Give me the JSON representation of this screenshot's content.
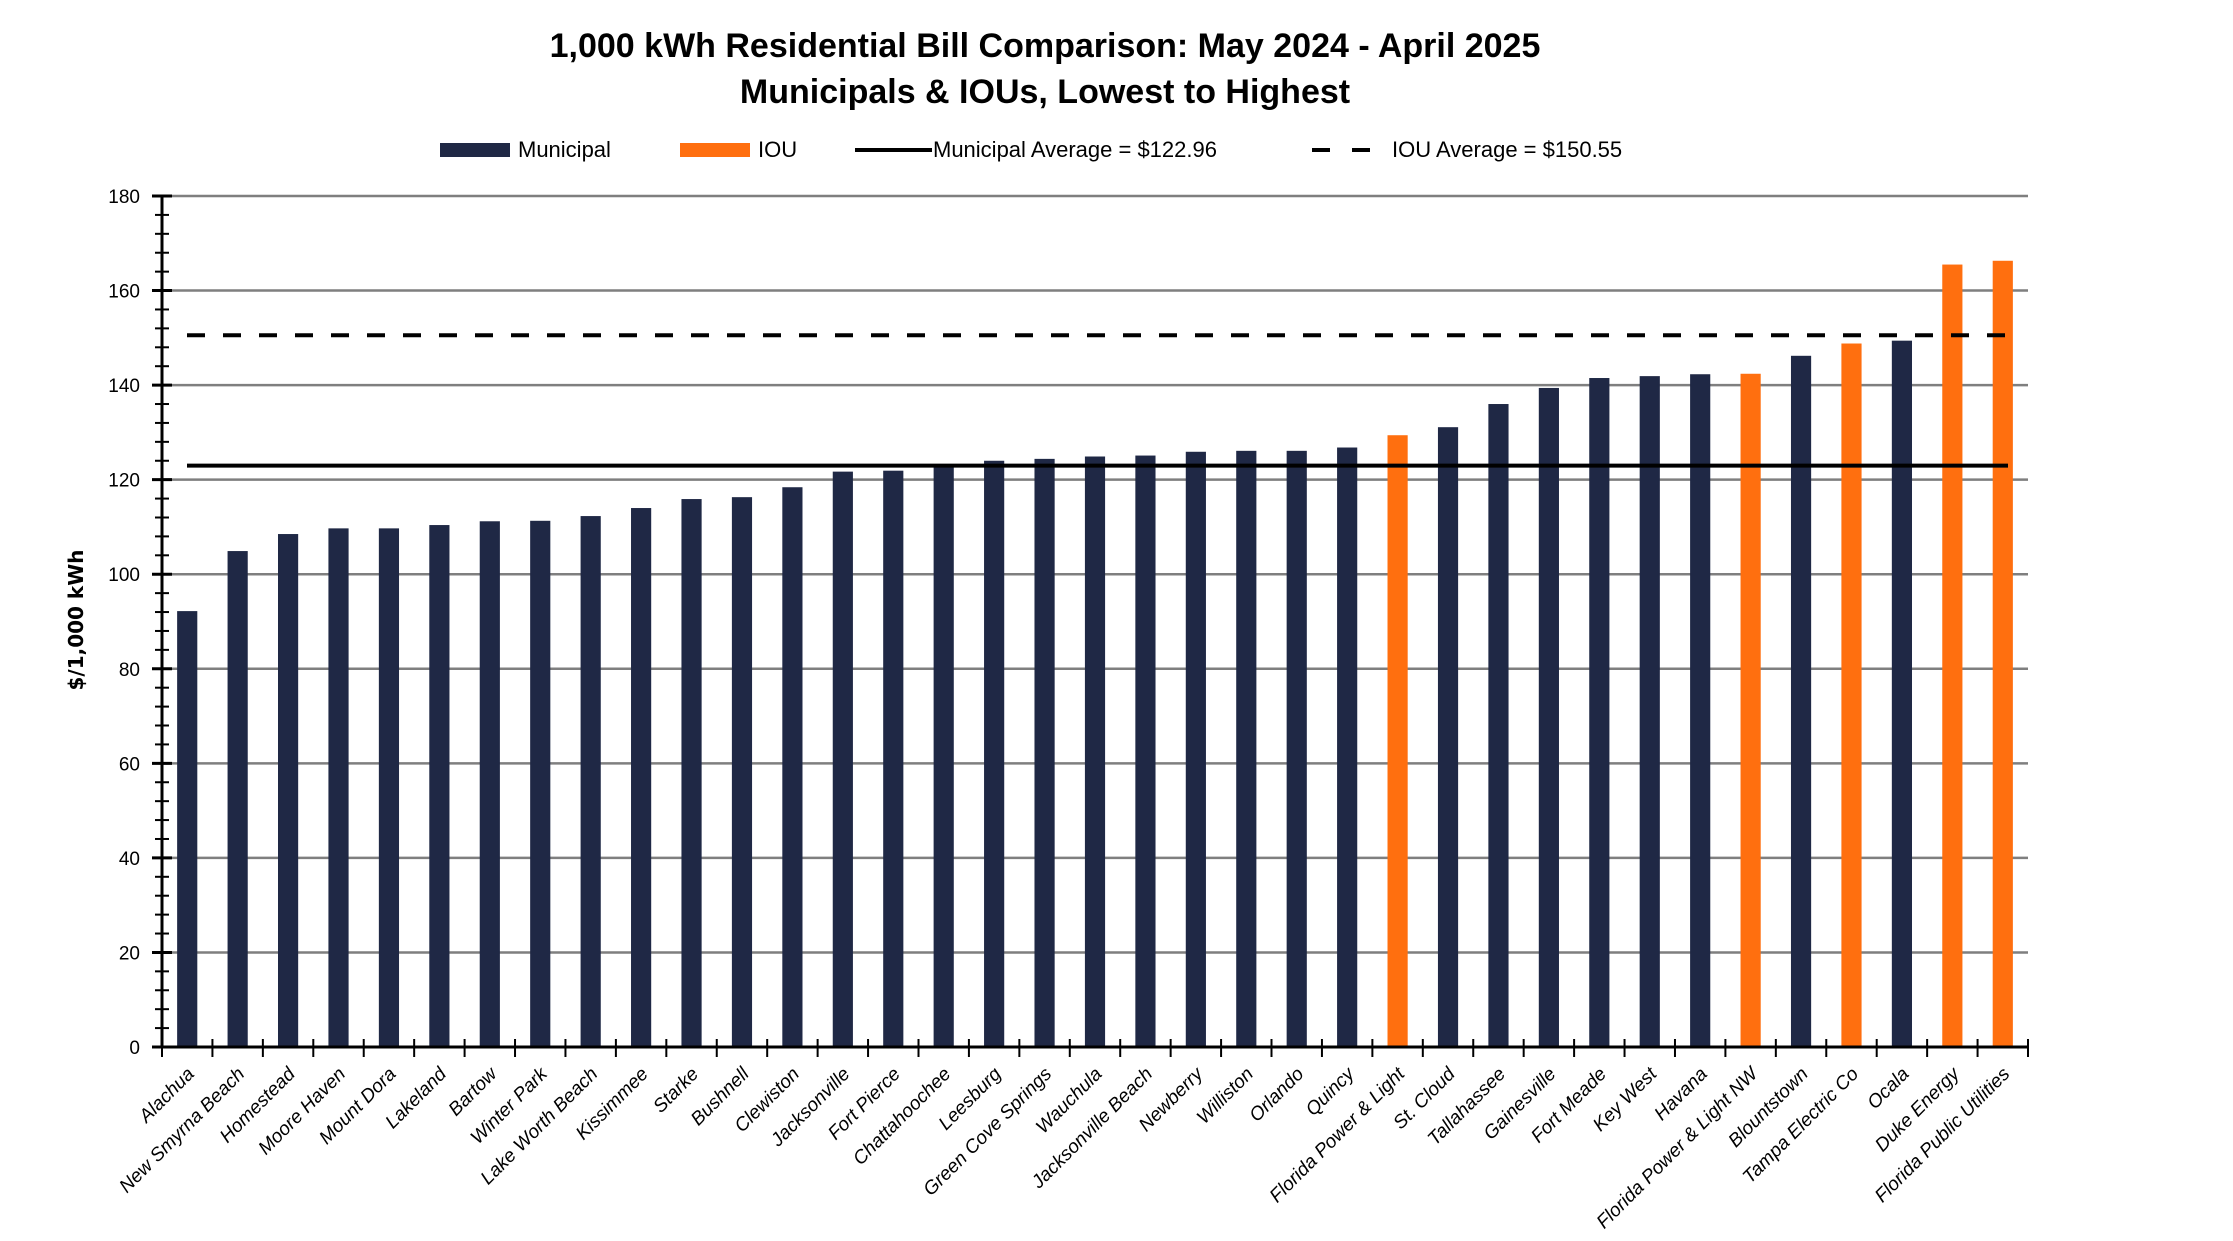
{
  "chart_data": {
    "type": "bar",
    "title": "1,000 kWh Residential Bill Comparison: May 2024 - April 2025",
    "subtitle": "Municipals & IOUs, Lowest to Highest",
    "xlabel": "",
    "ylabel": "$/1,000 kWh",
    "ylim": [
      0,
      180
    ],
    "yticks": [
      0,
      20,
      40,
      60,
      80,
      100,
      120,
      140,
      160,
      180
    ],
    "y_minor_step": 4,
    "grid": true,
    "legend_position": "top-center",
    "legend": [
      {
        "label": "Municipal",
        "kind": "bar",
        "color": "#1f2845"
      },
      {
        "label": "IOU",
        "kind": "bar",
        "color": "#ff6f0f"
      },
      {
        "label": "Municipal Average = $122.96",
        "kind": "solid-line",
        "color": "#000000"
      },
      {
        "label": "IOU Average = $150.55",
        "kind": "dashed-line",
        "color": "#000000"
      }
    ],
    "reference_lines": [
      {
        "name": "Municipal Average",
        "value": 122.96,
        "style": "solid"
      },
      {
        "name": "IOU Average",
        "value": 150.55,
        "style": "dashed"
      }
    ],
    "colors": {
      "Municipal": "#1f2845",
      "IOU": "#ff6f0f"
    },
    "categories": [
      "Alachua",
      "New Smyrna Beach",
      "Homestead",
      "Moore Haven",
      "Mount Dora",
      "Lakeland",
      "Bartow",
      "Winter Park",
      "Lake Worth Beach",
      "Kissimmee",
      "Starke",
      "Bushnell",
      "Clewiston",
      "Jacksonville",
      "Fort Pierce",
      "Chattahoochee",
      "Leesburg",
      "Green Cove Springs",
      "Wauchula",
      "Jacksonville Beach",
      "Newberry",
      "Williston",
      "Orlando",
      "Quincy",
      "Florida Power & Light",
      "St. Cloud",
      "Tallahassee",
      "Gainesville",
      "Fort Meade",
      "Key West",
      "Havana",
      "Florida Power & Light NW",
      "Blountstown",
      "Tampa Electric Co",
      "Ocala",
      "Duke Energy",
      "Florida Public Utilities"
    ],
    "groups": [
      "Municipal",
      "Municipal",
      "Municipal",
      "Municipal",
      "Municipal",
      "Municipal",
      "Municipal",
      "Municipal",
      "Municipal",
      "Municipal",
      "Municipal",
      "Municipal",
      "Municipal",
      "Municipal",
      "Municipal",
      "Municipal",
      "Municipal",
      "Municipal",
      "Municipal",
      "Municipal",
      "Municipal",
      "Municipal",
      "Municipal",
      "Municipal",
      "IOU",
      "Municipal",
      "Municipal",
      "Municipal",
      "Municipal",
      "Municipal",
      "Municipal",
      "IOU",
      "Municipal",
      "IOU",
      "Municipal",
      "IOU",
      "IOU"
    ],
    "values": [
      92.2,
      104.9,
      108.5,
      109.7,
      109.7,
      110.4,
      111.2,
      111.3,
      112.3,
      114.0,
      115.9,
      116.3,
      118.4,
      121.7,
      121.9,
      123.0,
      124.0,
      124.4,
      124.9,
      125.1,
      125.9,
      126.1,
      126.1,
      126.8,
      129.4,
      131.1,
      136.0,
      139.4,
      141.5,
      141.9,
      142.3,
      142.4,
      146.2,
      148.8,
      149.4,
      165.5,
      166.3
    ]
  }
}
